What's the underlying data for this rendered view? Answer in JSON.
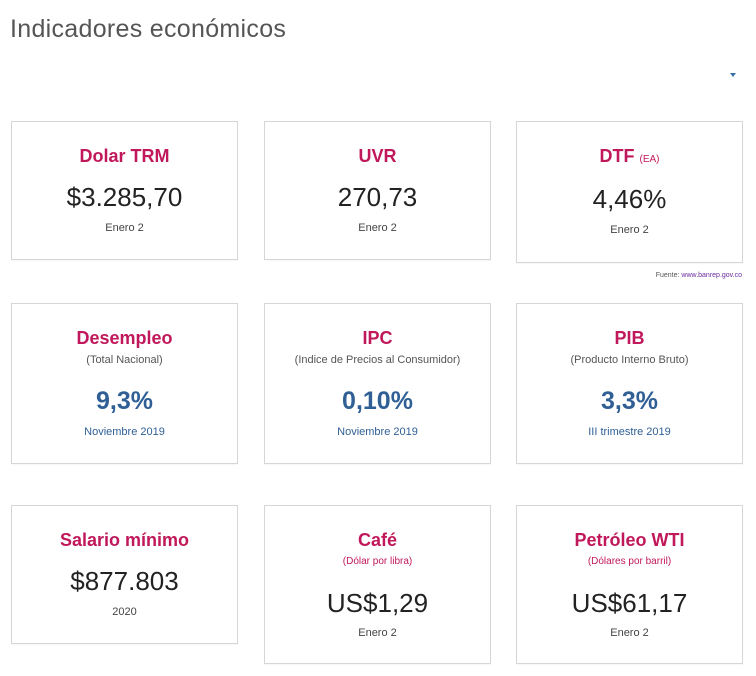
{
  "page": {
    "title": "Indicadores económicos"
  },
  "source": {
    "label": "Fuente:",
    "link_text": "www.banrep.gov.co"
  },
  "cards": {
    "dolar_trm": {
      "title": "Dolar TRM",
      "value": "$3.285,70",
      "date": "Enero 2"
    },
    "uvr": {
      "title": "UVR",
      "value": "270,73",
      "date": "Enero 2"
    },
    "dtf": {
      "title": "DTF",
      "title_suffix": "(EA)",
      "value": "4,46%",
      "date": "Enero 2"
    },
    "desempleo": {
      "title": "Desempleo",
      "subtitle": "(Total Nacional)",
      "value": "9,3%",
      "date": "Noviembre 2019"
    },
    "ipc": {
      "title": "IPC",
      "subtitle": "(Indice de Precios al Consumidor)",
      "value": "0,10%",
      "date": "Noviembre 2019"
    },
    "pib": {
      "title": "PIB",
      "subtitle": "(Producto Interno Bruto)",
      "value": "3,3%",
      "date": "III trimestre 2019"
    },
    "salario": {
      "title": "Salario mínimo",
      "value": "$877.803",
      "date": "2020"
    },
    "cafe": {
      "title": "Café",
      "subtitle": "(Dólar por libra)",
      "value": "US$1,29",
      "date": "Enero 2"
    },
    "petroleo": {
      "title": "Petróleo WTI",
      "subtitle": "(Dólares por barril)",
      "value": "US$61,17",
      "date": "Enero 2"
    }
  },
  "colors": {
    "accent": "#c0185a",
    "value_blue": "#2f5f95",
    "text": "#222222",
    "border": "#d6d6d6"
  }
}
